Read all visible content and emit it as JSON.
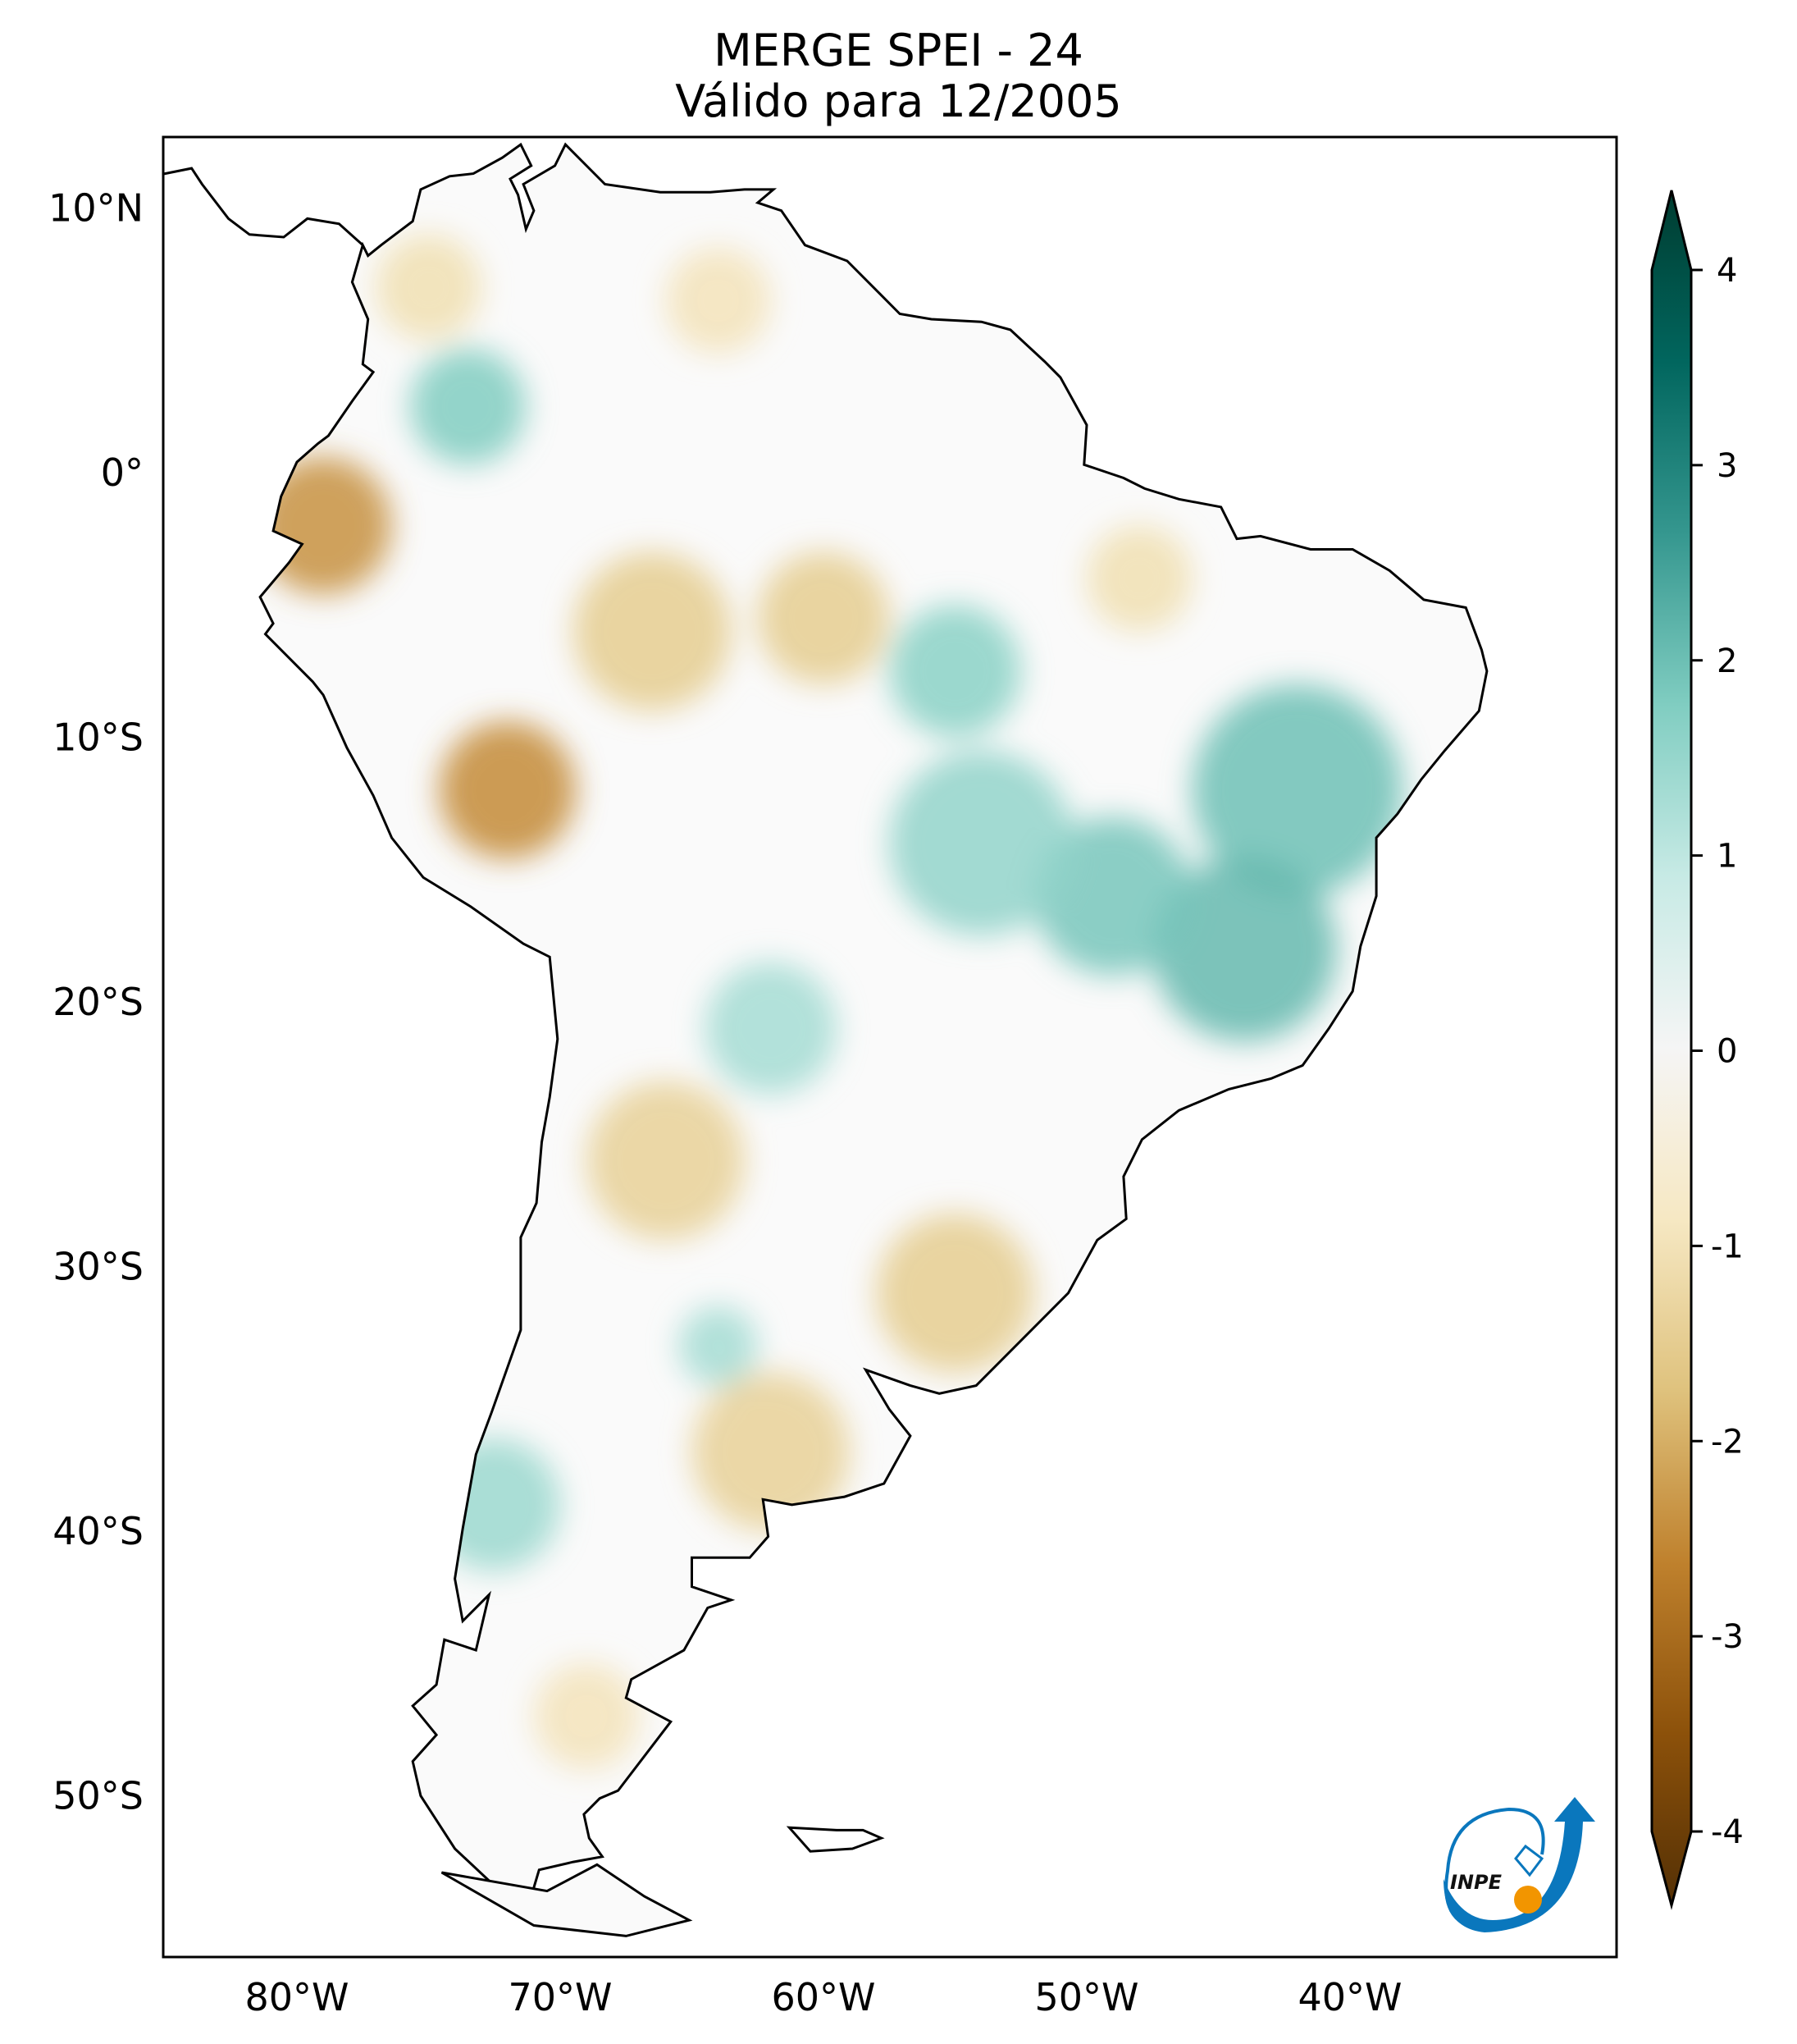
{
  "title": {
    "line1": "MERGE   SPEI - 24",
    "line2": "Válido para 12/2005"
  },
  "logo": {
    "text": "INPE",
    "colors": {
      "blue": "#0a77bd",
      "orange": "#f29500"
    }
  },
  "chart_data": {
    "type": "heatmap",
    "title": "MERGE   SPEI - 24 / Válido para 12/2005",
    "extent": {
      "lon": [
        -85,
        -30
      ],
      "lat": [
        -56,
        13
      ]
    },
    "lat_ticks": [
      {
        "v": 10,
        "t": "10°N"
      },
      {
        "v": 0,
        "t": "0°"
      },
      {
        "v": -10,
        "t": "10°S"
      },
      {
        "v": -20,
        "t": "20°S"
      },
      {
        "v": -30,
        "t": "30°S"
      },
      {
        "v": -40,
        "t": "40°S"
      },
      {
        "v": -50,
        "t": "50°S"
      }
    ],
    "lon_ticks": [
      {
        "v": -80,
        "t": "80°W"
      },
      {
        "v": -70,
        "t": "70°W"
      },
      {
        "v": -60,
        "t": "60°W"
      },
      {
        "v": -50,
        "t": "50°W"
      },
      {
        "v": -40,
        "t": "40°W"
      }
    ],
    "colorbar": {
      "min": -4,
      "max": 4,
      "ticks": [
        "4",
        "3",
        "2",
        "1",
        "0",
        "-1",
        "-2",
        "-3",
        "-4"
      ],
      "extend": "both",
      "colormap": "BrBG",
      "stops": [
        "#543005",
        "#8c510a",
        "#bf812d",
        "#dfc27d",
        "#f6e8c3",
        "#f5f5f5",
        "#c7eae5",
        "#80cdc1",
        "#35978f",
        "#01665e",
        "#003c30"
      ]
    },
    "anomalies": [
      {
        "lon": -79,
        "lat": -2,
        "value": -2.2,
        "r": 2.6
      },
      {
        "lon": -72,
        "lat": -12,
        "value": -2.3,
        "r": 2.6
      },
      {
        "lon": -66.5,
        "lat": -6,
        "value": -1.4,
        "r": 3
      },
      {
        "lon": -60,
        "lat": -5.5,
        "value": -1.4,
        "r": 2.5
      },
      {
        "lon": -73.5,
        "lat": 2.5,
        "value": 1.6,
        "r": 2.2
      },
      {
        "lon": -75,
        "lat": 7,
        "value": -1.0,
        "r": 2
      },
      {
        "lon": -64,
        "lat": 6.5,
        "value": -0.9,
        "r": 2
      },
      {
        "lon": -42,
        "lat": -12,
        "value": 1.8,
        "r": 4
      },
      {
        "lon": -44,
        "lat": -18,
        "value": 1.9,
        "r": 3.5
      },
      {
        "lon": -49,
        "lat": -16,
        "value": 1.7,
        "r": 3
      },
      {
        "lon": -54,
        "lat": -14,
        "value": 1.4,
        "r": 3.5
      },
      {
        "lon": -55,
        "lat": -7.5,
        "value": 1.5,
        "r": 2.5
      },
      {
        "lon": -48,
        "lat": -4,
        "value": -1.0,
        "r": 2
      },
      {
        "lon": -62,
        "lat": -21,
        "value": 1.2,
        "r": 2.5
      },
      {
        "lon": -66,
        "lat": -26,
        "value": -1.3,
        "r": 3
      },
      {
        "lon": -55,
        "lat": -31,
        "value": -1.4,
        "r": 3
      },
      {
        "lon": -62,
        "lat": -37,
        "value": -1.3,
        "r": 3
      },
      {
        "lon": -64,
        "lat": -33,
        "value": 1.2,
        "r": 1.5
      },
      {
        "lon": -72.5,
        "lat": -39,
        "value": 1.3,
        "r": 2.5
      },
      {
        "lon": -69,
        "lat": -47,
        "value": -0.9,
        "r": 2
      }
    ]
  }
}
